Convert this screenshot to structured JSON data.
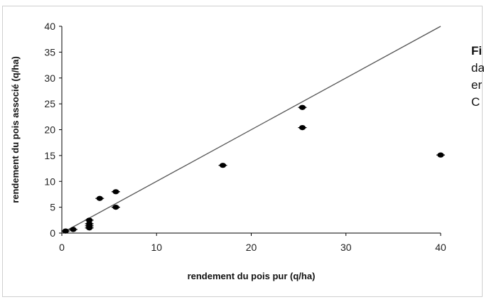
{
  "chart_data": {
    "type": "scatter",
    "title": "",
    "xlabel": "rendement du pois pur (q/ha)",
    "ylabel": "rendement du pois associé (q/ha)",
    "xlim": [
      0,
      40
    ],
    "ylim": [
      0,
      40
    ],
    "xticks": [
      "0",
      "10",
      "20",
      "30",
      "40"
    ],
    "yticks": [
      "0",
      "5",
      "10",
      "15",
      "20",
      "25",
      "30",
      "35",
      "40"
    ],
    "grid": false,
    "legend": "none",
    "marker_color": "#000000",
    "reference_line": {
      "type": "y=x",
      "from": [
        0,
        0
      ],
      "to": [
        40,
        40
      ],
      "color": "#555555"
    },
    "series": [
      {
        "points": [
          [
            0.4,
            0.4
          ],
          [
            1.2,
            0.7
          ],
          [
            2.9,
            2.5
          ],
          [
            2.9,
            1.8
          ],
          [
            2.9,
            1.4
          ],
          [
            2.9,
            1.0
          ],
          [
            4.0,
            6.7
          ],
          [
            5.7,
            8.0
          ],
          [
            5.7,
            5.0
          ],
          [
            17.0,
            13.1
          ],
          [
            25.4,
            24.3
          ],
          [
            25.4,
            20.4
          ],
          [
            40.0,
            15.1
          ]
        ]
      }
    ]
  },
  "caption": {
    "line1": "Fi",
    "line2": "da",
    "line3": "er",
    "line4": "C"
  }
}
